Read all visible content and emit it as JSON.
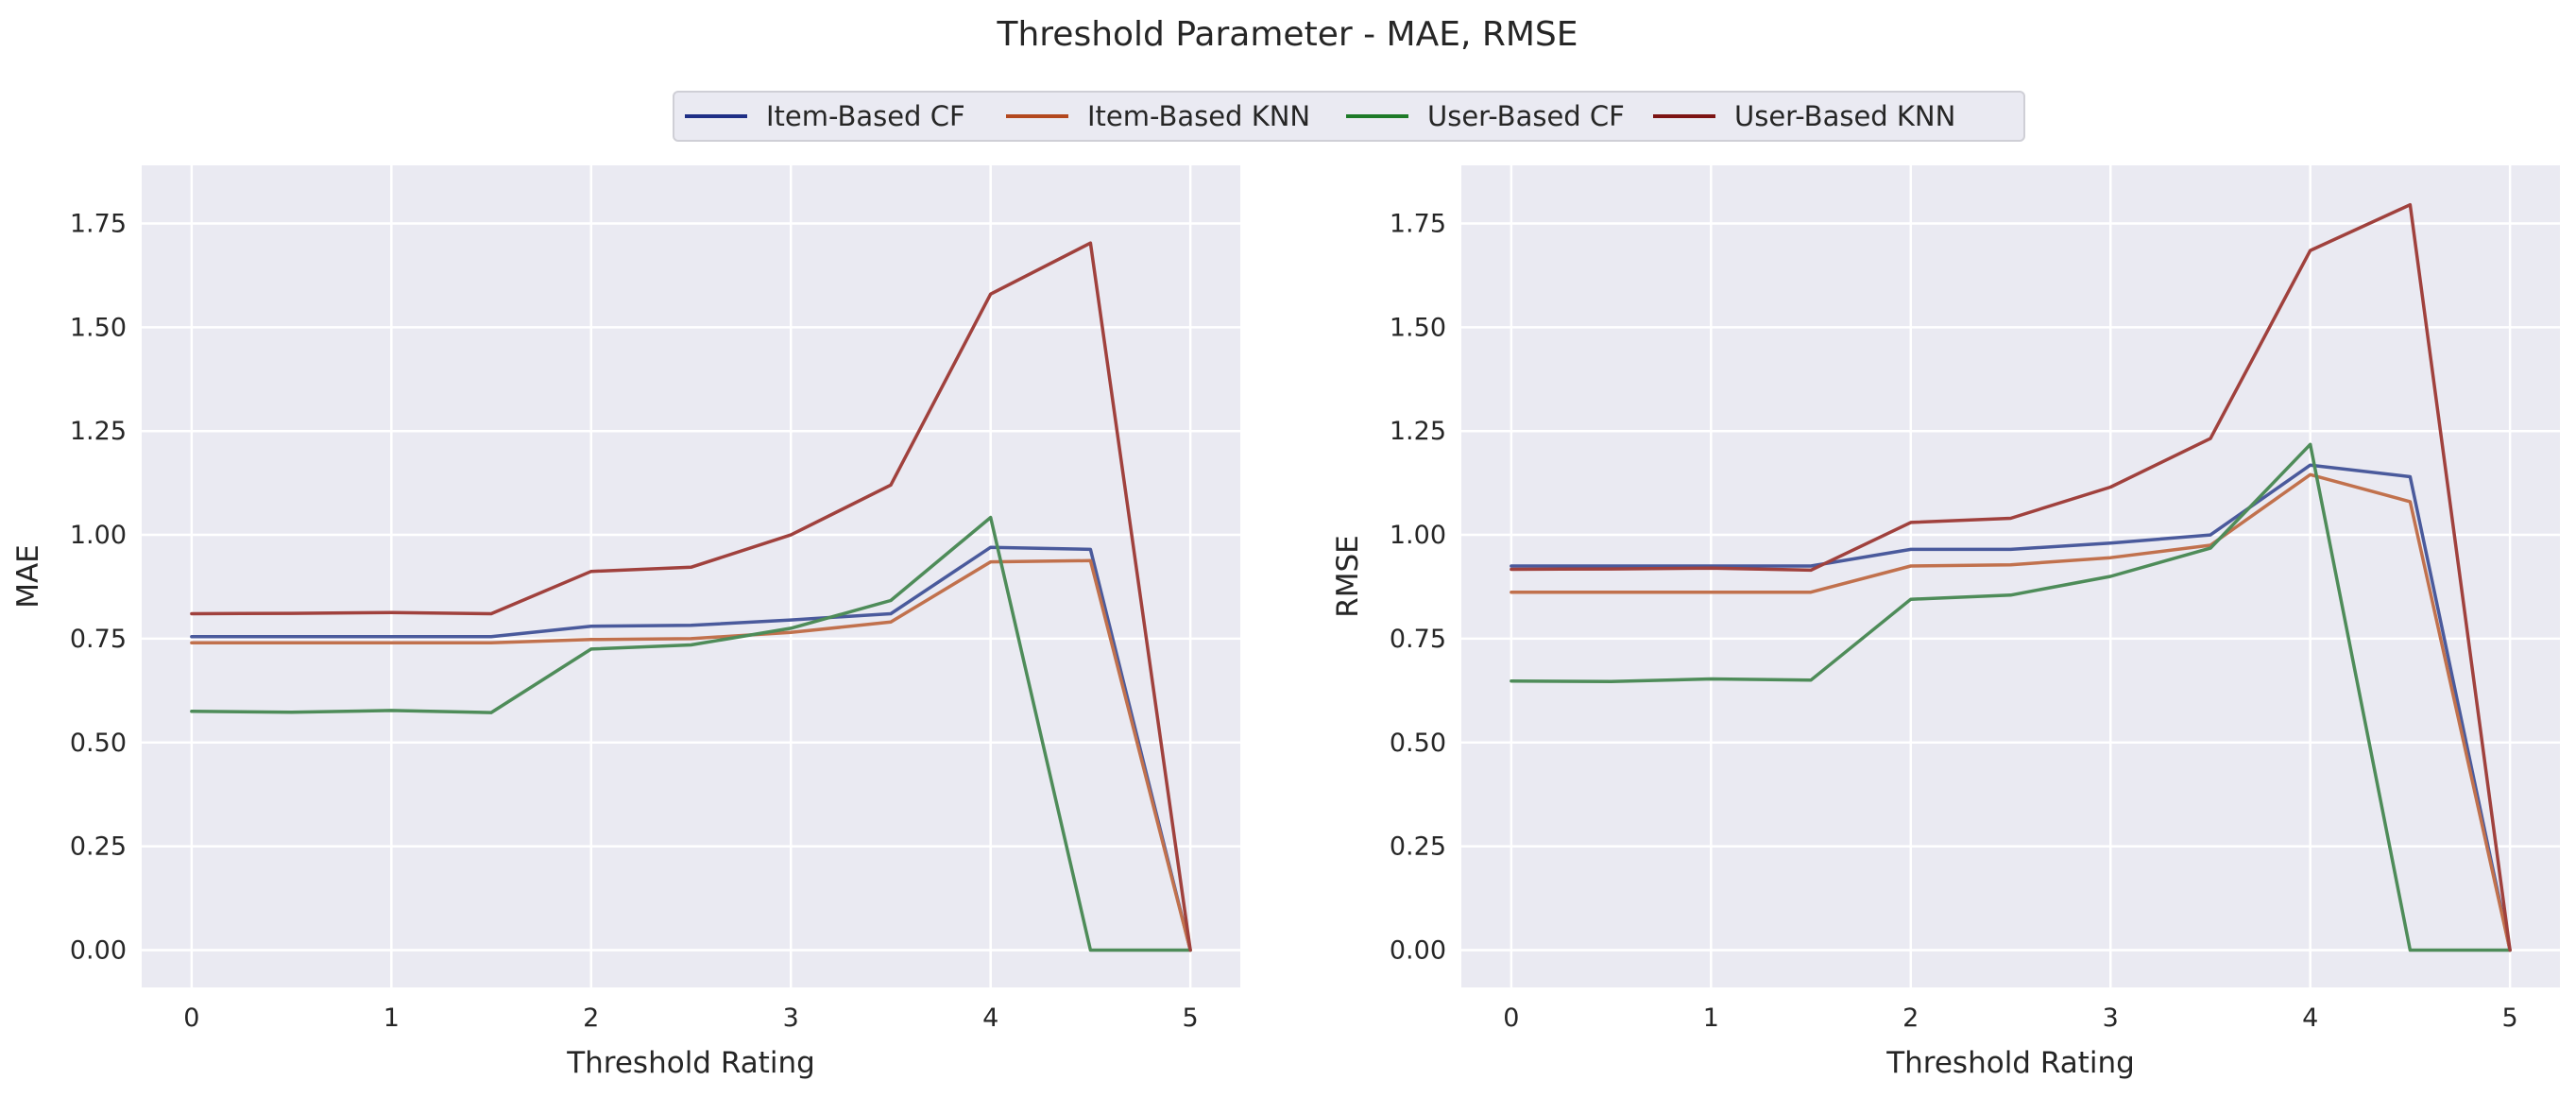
{
  "figure": {
    "title": "Threshold Parameter - MAE, RMSE"
  },
  "legend": {
    "placement": "top-center",
    "entries": [
      {
        "name": "Item-Based CF",
        "color": "#1f2f86"
      },
      {
        "name": "Item-Based KNN",
        "color": "#b3481f"
      },
      {
        "name": "User-Based CF",
        "color": "#1d7a28"
      },
      {
        "name": "User-Based KNN",
        "color": "#7d1414"
      }
    ]
  },
  "chart_data": [
    {
      "type": "line",
      "xlabel": "Threshold Rating",
      "ylabel": "MAE",
      "x": [
        0,
        0.5,
        1,
        1.5,
        2,
        2.5,
        3,
        3.5,
        4,
        4.5,
        5
      ],
      "xlim": [
        -0.25,
        5.25
      ],
      "ylim": [
        -0.09,
        1.89
      ],
      "xticks": [
        "0",
        "1",
        "2",
        "3",
        "4",
        "5"
      ],
      "yticks": [
        "0.00",
        "0.25",
        "0.50",
        "0.75",
        "1.00",
        "1.25",
        "1.50",
        "1.75"
      ],
      "grid": true,
      "series": [
        {
          "name": "Item-Based CF",
          "color": "#4a5a9c",
          "values": [
            0.755,
            0.755,
            0.755,
            0.755,
            0.78,
            0.782,
            0.795,
            0.81,
            0.97,
            0.965,
            0.0
          ]
        },
        {
          "name": "Item-Based KNN",
          "color": "#c1714d",
          "values": [
            0.74,
            0.74,
            0.74,
            0.74,
            0.748,
            0.75,
            0.765,
            0.79,
            0.935,
            0.938,
            0.0
          ]
        },
        {
          "name": "User-Based CF",
          "color": "#4e8c59",
          "values": [
            0.575,
            0.573,
            0.577,
            0.572,
            0.725,
            0.735,
            0.775,
            0.842,
            1.042,
            0.0,
            0.0
          ]
        },
        {
          "name": "User-Based KNN",
          "color": "#a0413d",
          "values": [
            0.81,
            0.811,
            0.813,
            0.81,
            0.912,
            0.922,
            1.0,
            1.12,
            1.58,
            1.703,
            0.0
          ]
        }
      ]
    },
    {
      "type": "line",
      "xlabel": "Threshold Rating",
      "ylabel": "RMSE",
      "x": [
        0,
        0.5,
        1,
        1.5,
        2,
        2.5,
        3,
        3.5,
        4,
        4.5,
        5
      ],
      "xlim": [
        -0.25,
        5.25
      ],
      "ylim": [
        -0.09,
        1.89
      ],
      "xticks": [
        "0",
        "1",
        "2",
        "3",
        "4",
        "5"
      ],
      "yticks": [
        "0.00",
        "0.25",
        "0.50",
        "0.75",
        "1.00",
        "1.25",
        "1.50",
        "1.75"
      ],
      "grid": true,
      "series": [
        {
          "name": "Item-Based CF",
          "color": "#4a5a9c",
          "values": [
            0.925,
            0.925,
            0.925,
            0.925,
            0.965,
            0.965,
            0.98,
            1.0,
            1.168,
            1.14,
            0.0
          ]
        },
        {
          "name": "Item-Based KNN",
          "color": "#c1714d",
          "values": [
            0.862,
            0.862,
            0.862,
            0.862,
            0.925,
            0.928,
            0.945,
            0.975,
            1.145,
            1.08,
            0.0
          ]
        },
        {
          "name": "User-Based CF",
          "color": "#4e8c59",
          "values": [
            0.648,
            0.647,
            0.653,
            0.65,
            0.845,
            0.855,
            0.9,
            0.968,
            1.218,
            0.0,
            0.0
          ]
        },
        {
          "name": "User-Based KNN",
          "color": "#a0413d",
          "values": [
            0.917,
            0.918,
            0.92,
            0.915,
            1.03,
            1.04,
            1.115,
            1.232,
            1.685,
            1.795,
            0.0
          ]
        }
      ]
    }
  ]
}
